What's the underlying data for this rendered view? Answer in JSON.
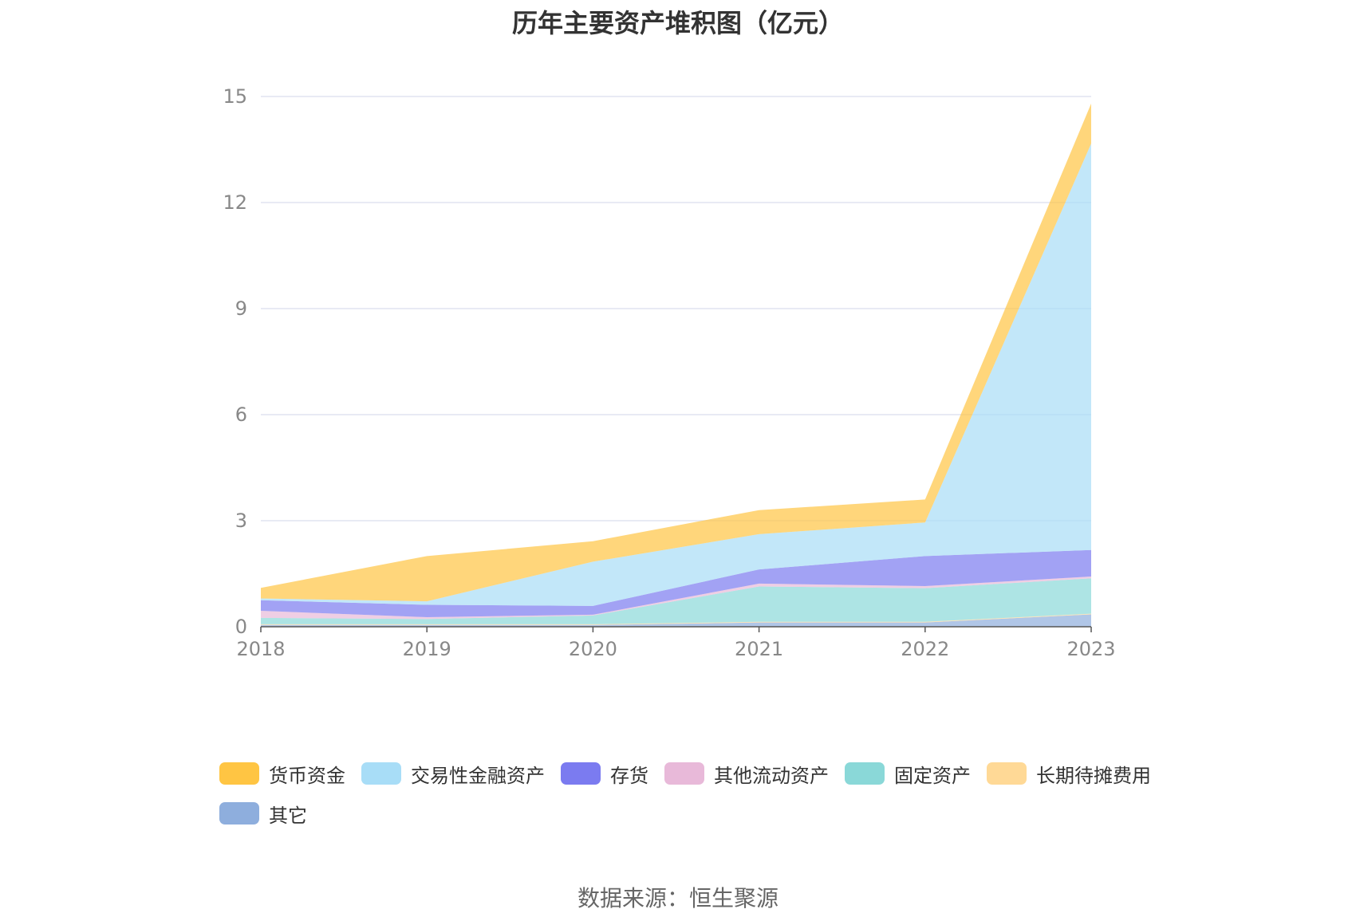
{
  "chart_data": {
    "type": "area",
    "stacked": true,
    "title": "历年主要资产堆积图（亿元）",
    "categories": [
      "2018",
      "2019",
      "2020",
      "2021",
      "2022",
      "2023"
    ],
    "ylim": [
      0,
      15
    ],
    "yticks": [
      0,
      3,
      6,
      9,
      12,
      15
    ],
    "grid": true,
    "legend_position": "bottom",
    "series": [
      {
        "name": "其它",
        "color": "#8eaedd",
        "values": [
          0.05,
          0.05,
          0.05,
          0.12,
          0.12,
          0.35
        ]
      },
      {
        "name": "长期待摊费用",
        "color": "#ffd996",
        "values": [
          0.02,
          0.02,
          0.02,
          0.02,
          0.02,
          0.02
        ]
      },
      {
        "name": "固定资产",
        "color": "#8ad8d8",
        "values": [
          0.18,
          0.15,
          0.25,
          1.0,
          0.95,
          1.0
        ]
      },
      {
        "name": "其他流动资产",
        "color": "#e8b9d9",
        "values": [
          0.2,
          0.05,
          0.02,
          0.08,
          0.06,
          0.05
        ]
      },
      {
        "name": "存货",
        "color": "#7b7bf0",
        "values": [
          0.3,
          0.35,
          0.25,
          0.4,
          0.85,
          0.75
        ]
      },
      {
        "name": "交易性金融资产",
        "color": "#a8ddf7",
        "values": [
          0.05,
          0.1,
          1.25,
          1.0,
          0.95,
          11.5
        ]
      },
      {
        "name": "货币资金",
        "color": "#ffc543",
        "values": [
          0.3,
          1.28,
          0.58,
          0.68,
          0.65,
          1.13
        ]
      }
    ],
    "legend_order": [
      "货币资金",
      "交易性金融资产",
      "存货",
      "其他流动资产",
      "固定资产",
      "长期待摊费用",
      "其它"
    ],
    "source": "数据来源：恒生聚源"
  }
}
